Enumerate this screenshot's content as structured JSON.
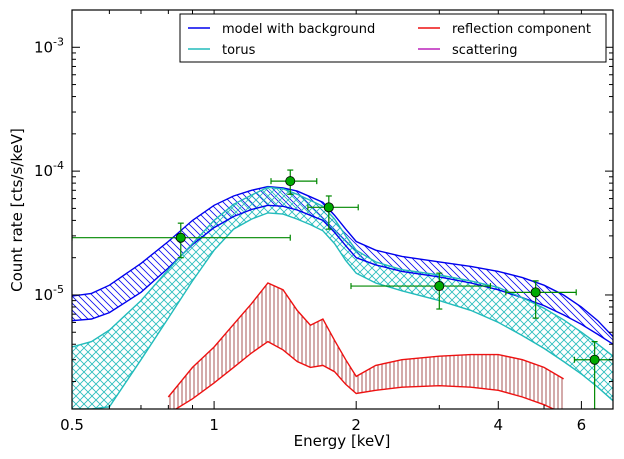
{
  "chart_data": {
    "type": "line",
    "xlabel": "Energy [keV]",
    "ylabel": "Count rate [cts/s/keV]",
    "xscale": "log",
    "yscale": "log",
    "xlim": [
      0.5,
      7.0
    ],
    "ylim": [
      1.2e-06,
      0.002
    ],
    "x_ticks": [
      {
        "value": 0.5,
        "label": "0.5"
      },
      {
        "value": 1,
        "label": "1"
      },
      {
        "value": 2,
        "label": "2"
      },
      {
        "value": 4,
        "label": "4"
      },
      {
        "value": 6,
        "label": "6"
      }
    ],
    "y_ticks": [
      {
        "value": 1e-05,
        "base": "10",
        "exp": "-5"
      },
      {
        "value": 0.0001,
        "base": "10",
        "exp": "-4"
      },
      {
        "value": 0.001,
        "base": "10",
        "exp": "-3"
      }
    ],
    "legend": {
      "position": "top-right",
      "entries": [
        {
          "label": "model with background",
          "color": "#0000ee"
        },
        {
          "label": "reflection component",
          "color": "#ee1111"
        },
        {
          "label": "torus",
          "color": "#22bbbb"
        },
        {
          "label": "scattering",
          "color": "#bb22bb"
        }
      ]
    },
    "x": [
      0.5,
      0.55,
      0.6,
      0.7,
      0.8,
      0.9,
      1.0,
      1.1,
      1.2,
      1.3,
      1.4,
      1.5,
      1.6,
      1.7,
      1.8,
      1.9,
      2.0,
      2.2,
      2.5,
      3.0,
      3.5,
      4.0,
      4.5,
      5.0,
      5.5,
      6.0,
      6.5,
      7.0
    ],
    "series": [
      {
        "name": "model with background",
        "color": "#0000ee",
        "lower": [
          6.2e-06,
          6.4e-06,
          7.2e-06,
          1.05e-05,
          1.65e-05,
          2.55e-05,
          3.5e-05,
          4.3e-05,
          4.9e-05,
          5.3e-05,
          5.2e-05,
          4.85e-05,
          4.4e-05,
          4e-05,
          3.2e-05,
          2.5e-05,
          2e-05,
          1.75e-05,
          1.55e-05,
          1.4e-05,
          1.25e-05,
          1.1e-05,
          9.5e-06,
          8.2e-06,
          6.9e-06,
          5.8e-06,
          4.8e-06,
          4e-06
        ],
        "upper": [
          9.8e-06,
          1.03e-05,
          1.2e-05,
          1.8e-05,
          2.7e-05,
          4e-05,
          5.3e-05,
          6.3e-05,
          7e-05,
          7.5e-05,
          7.3e-05,
          6.9e-05,
          6.2e-05,
          5.6e-05,
          4.4e-05,
          3.4e-05,
          2.7e-05,
          2.3e-05,
          2.05e-05,
          1.85e-05,
          1.7e-05,
          1.55e-05,
          1.38e-05,
          1.2e-05,
          1e-05,
          8e-06,
          6.2e-06,
          4.6e-06
        ]
      },
      {
        "name": "torus",
        "color": "#22bbbb",
        "lower": [
          1.2e-06,
          1.2e-06,
          1.25e-06,
          3e-06,
          6.5e-06,
          1.3e-05,
          2.3e-05,
          3.4e-05,
          4.1e-05,
          4.6e-05,
          4.5e-05,
          4.1e-05,
          3.7e-05,
          3.3e-05,
          2.6e-05,
          1.9e-05,
          1.5e-05,
          1.25e-05,
          1.08e-05,
          9e-06,
          7.5e-06,
          6e-06,
          4.7e-06,
          3.7e-06,
          2.9e-06,
          2.3e-06,
          1.8e-06,
          1.4e-06
        ],
        "upper": [
          3.8e-06,
          4.2e-06,
          5.2e-06,
          9e-06,
          1.6e-05,
          2.6e-05,
          4e-05,
          5.4e-05,
          6.4e-05,
          7.4e-05,
          7.2e-05,
          6.5e-05,
          5.8e-05,
          5.2e-05,
          4.1e-05,
          3e-05,
          2.3e-05,
          1.85e-05,
          1.6e-05,
          1.45e-05,
          1.3e-05,
          1.15e-05,
          9.5e-06,
          7.8e-06,
          6.3e-06,
          5e-06,
          4e-06,
          3.2e-06
        ]
      },
      {
        "name": "reflection component",
        "color": "#ee1111",
        "lower": [
          null,
          null,
          null,
          null,
          1.1e-06,
          1.45e-06,
          1.95e-06,
          2.6e-06,
          3.4e-06,
          4.2e-06,
          3.6e-06,
          2.9e-06,
          2.6e-06,
          2.7e-06,
          2.4e-06,
          1.9e-06,
          1.6e-06,
          1.7e-06,
          1.8e-06,
          1.85e-06,
          1.8e-06,
          1.7e-06,
          1.5e-06,
          1.3e-06,
          1.1e-06,
          null,
          null,
          null
        ],
        "upper": [
          null,
          null,
          null,
          null,
          1.5e-06,
          2.6e-06,
          3.8e-06,
          5.8e-06,
          8.5e-06,
          1.25e-05,
          1.1e-05,
          7.5e-06,
          5.7e-06,
          6.4e-06,
          4.3e-06,
          3e-06,
          2.2e-06,
          2.7e-06,
          3e-06,
          3.2e-06,
          3.3e-06,
          3.3e-06,
          3e-06,
          2.6e-06,
          2.1e-06,
          1.6e-06,
          1.2e-06,
          null
        ]
      }
    ],
    "data_points": [
      {
        "x": 0.85,
        "y": 2.9e-05,
        "xerr": [
          0.5,
          1.45
        ],
        "yerr": [
          2e-05,
          3.8e-05
        ]
      },
      {
        "x": 1.45,
        "y": 8.3e-05,
        "xerr": [
          1.32,
          1.65
        ],
        "yerr": [
          6.5e-05,
          0.000102
        ]
      },
      {
        "x": 1.75,
        "y": 5.1e-05,
        "xerr": [
          1.58,
          2.02
        ],
        "yerr": [
          3.4e-05,
          6.3e-05
        ]
      },
      {
        "x": 3.0,
        "y": 1.18e-05,
        "xerr": [
          1.95,
          3.85
        ],
        "yerr": [
          7.7e-06,
          1.5e-05
        ]
      },
      {
        "x": 4.8,
        "y": 1.05e-05,
        "xerr": [
          4.15,
          5.85
        ],
        "yerr": [
          6.5e-06,
          1.3e-05
        ]
      },
      {
        "x": 6.4,
        "y": 3e-06,
        "xerr": [
          5.8,
          7.0
        ],
        "yerr": [
          1.2e-06,
          4.2e-06
        ]
      }
    ]
  }
}
